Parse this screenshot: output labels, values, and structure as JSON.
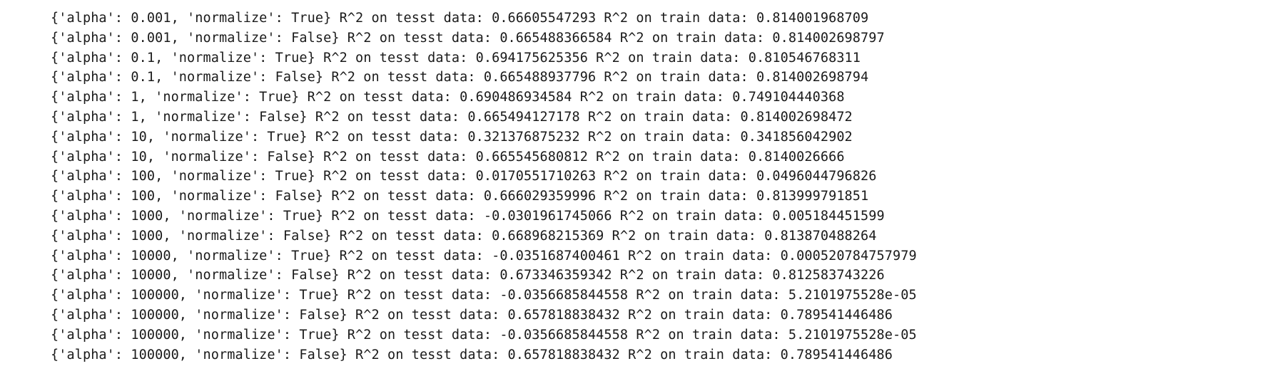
{
  "output": {
    "lines": [
      "{'alpha': 0.001, 'normalize': True} R^2 on tesst data: 0.66605547293 R^2 on train data: 0.814001968709",
      "{'alpha': 0.001, 'normalize': False} R^2 on tesst data: 0.665488366584 R^2 on train data: 0.814002698797",
      "{'alpha': 0.1, 'normalize': True} R^2 on tesst data: 0.694175625356 R^2 on train data: 0.810546768311",
      "{'alpha': 0.1, 'normalize': False} R^2 on tesst data: 0.665488937796 R^2 on train data: 0.814002698794",
      "{'alpha': 1, 'normalize': True} R^2 on tesst data: 0.690486934584 R^2 on train data: 0.749104440368",
      "{'alpha': 1, 'normalize': False} R^2 on tesst data: 0.665494127178 R^2 on train data: 0.814002698472",
      "{'alpha': 10, 'normalize': True} R^2 on tesst data: 0.321376875232 R^2 on train data: 0.341856042902",
      "{'alpha': 10, 'normalize': False} R^2 on tesst data: 0.665545680812 R^2 on train data: 0.8140026666",
      "{'alpha': 100, 'normalize': True} R^2 on tesst data: 0.0170551710263 R^2 on train data: 0.0496044796826",
      "{'alpha': 100, 'normalize': False} R^2 on tesst data: 0.666029359996 R^2 on train data: 0.813999791851",
      "{'alpha': 1000, 'normalize': True} R^2 on tesst data: -0.0301961745066 R^2 on train data: 0.005184451599",
      "{'alpha': 1000, 'normalize': False} R^2 on tesst data: 0.668968215369 R^2 on train data: 0.813870488264",
      "{'alpha': 10000, 'normalize': True} R^2 on tesst data: -0.0351687400461 R^2 on train data: 0.000520784757979",
      "{'alpha': 10000, 'normalize': False} R^2 on tesst data: 0.673346359342 R^2 on train data: 0.812583743226",
      "{'alpha': 100000, 'normalize': True} R^2 on tesst data: -0.0356685844558 R^2 on train data: 5.2101975528e-05",
      "{'alpha': 100000, 'normalize': False} R^2 on tesst data: 0.657818838432 R^2 on train data: 0.789541446486",
      "{'alpha': 100000, 'normalize': True} R^2 on tesst data: -0.0356685844558 R^2 on train data: 5.2101975528e-05",
      "{'alpha': 100000, 'normalize': False} R^2 on tesst data: 0.657818838432 R^2 on train data: 0.789541446486"
    ]
  }
}
